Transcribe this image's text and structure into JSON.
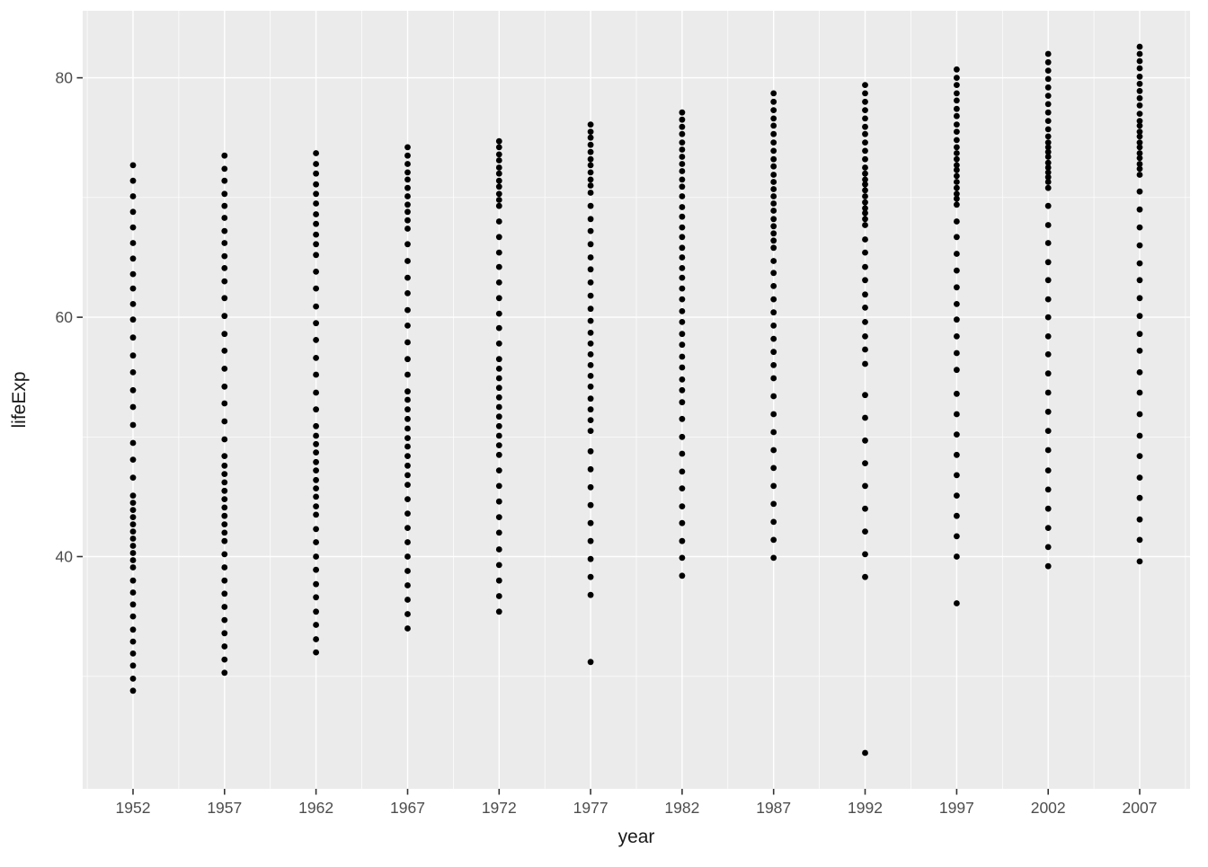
{
  "figure": {
    "background_color": "#FFFFFF",
    "panel_color": "#EBEBEB",
    "grid_color": "#FFFFFF",
    "point_color": "#000000",
    "tick_text_color": "#4D4D4D",
    "axis_title_color": "#1A1A1A",
    "tick_mark_color": "#333333"
  },
  "chart_data": {
    "type": "scatter",
    "title": "",
    "xlabel": "year",
    "ylabel": "lifeExp",
    "grid": "on",
    "legend": "none",
    "x_ticks": [
      1952,
      1957,
      1962,
      1967,
      1972,
      1977,
      1982,
      1987,
      1992,
      1997,
      2002,
      2007
    ],
    "x_tick_labels": [
      "1952",
      "1957",
      "1962",
      "1967",
      "1972",
      "1977",
      "1982",
      "1987",
      "1992",
      "1997",
      "2002",
      "2007"
    ],
    "y_ticks": [
      40,
      60,
      80
    ],
    "y_tick_labels": [
      "40",
      "60",
      "80"
    ],
    "xlim": [
      1949.25,
      2009.75
    ],
    "ylim": [
      20.6,
      85.6
    ],
    "x_minor_gridlines": [
      1949.5,
      1954.5,
      1959.5,
      1964.5,
      1969.5,
      1974.5,
      1979.5,
      1984.5,
      1989.5,
      1994.5,
      1999.5,
      2004.5,
      2009.5
    ],
    "y_minor_gridlines": [
      30,
      50,
      70
    ],
    "series": [
      {
        "name": "1952",
        "x": 1952,
        "values": [
          28.8,
          29.8,
          30.9,
          31.9,
          32.9,
          33.9,
          35.0,
          36.0,
          37.0,
          38.0,
          39.1,
          39.7,
          40.3,
          40.9,
          41.5,
          42.1,
          42.7,
          43.3,
          43.9,
          44.5,
          45.1,
          46.6,
          48.1,
          49.5,
          51.0,
          52.5,
          53.9,
          55.4,
          56.8,
          58.3,
          59.8,
          61.1,
          62.4,
          63.6,
          64.9,
          66.2,
          67.5,
          68.8,
          70.1,
          71.4,
          72.7
        ]
      },
      {
        "name": "1957",
        "x": 1957,
        "values": [
          30.3,
          31.4,
          32.5,
          33.6,
          34.7,
          35.8,
          36.9,
          38.0,
          39.1,
          40.2,
          41.3,
          42.0,
          42.7,
          43.4,
          44.1,
          44.8,
          45.5,
          46.2,
          46.9,
          47.6,
          48.4,
          49.8,
          51.3,
          52.8,
          54.2,
          55.7,
          57.2,
          58.6,
          60.1,
          61.6,
          63.0,
          64.1,
          65.1,
          66.2,
          67.2,
          68.3,
          69.3,
          70.3,
          71.4,
          72.4,
          73.5
        ]
      },
      {
        "name": "1962",
        "x": 1962,
        "values": [
          32.0,
          33.1,
          34.3,
          35.4,
          36.6,
          37.7,
          38.9,
          40.0,
          41.2,
          42.3,
          43.5,
          44.2,
          45.0,
          45.7,
          46.4,
          47.2,
          47.9,
          48.7,
          49.4,
          50.1,
          50.9,
          52.3,
          53.7,
          55.2,
          56.6,
          58.1,
          59.5,
          60.9,
          62.4,
          63.8,
          65.2,
          66.1,
          66.9,
          67.8,
          68.6,
          69.5,
          70.3,
          71.1,
          72.0,
          72.8,
          73.7
        ]
      },
      {
        "name": "1967",
        "x": 1967,
        "values": [
          34.0,
          35.2,
          36.4,
          37.6,
          38.8,
          40.0,
          41.2,
          42.4,
          43.6,
          44.8,
          46.0,
          46.8,
          47.6,
          48.4,
          49.2,
          49.9,
          50.7,
          51.5,
          52.3,
          53.1,
          53.8,
          55.2,
          56.5,
          57.9,
          59.3,
          60.6,
          62.0,
          63.3,
          64.7,
          66.1,
          67.4,
          68.1,
          68.8,
          69.4,
          70.1,
          70.8,
          71.5,
          72.1,
          72.8,
          73.5,
          74.2
        ]
      },
      {
        "name": "1972",
        "x": 1972,
        "values": [
          35.4,
          36.7,
          38.0,
          39.3,
          40.6,
          42.0,
          43.3,
          44.6,
          45.9,
          47.2,
          48.5,
          49.3,
          50.1,
          50.9,
          51.7,
          52.5,
          53.3,
          54.1,
          54.9,
          55.7,
          56.5,
          57.8,
          59.1,
          60.3,
          61.6,
          62.9,
          64.2,
          65.4,
          66.7,
          68.0,
          69.3,
          69.8,
          70.3,
          70.9,
          71.4,
          72.0,
          72.5,
          73.1,
          73.6,
          74.2,
          74.7
        ]
      },
      {
        "name": "1977",
        "x": 1977,
        "values": [
          31.2,
          36.8,
          38.3,
          39.8,
          41.3,
          42.8,
          44.3,
          45.8,
          47.3,
          48.8,
          50.5,
          51.4,
          52.3,
          53.2,
          54.2,
          55.1,
          56.0,
          56.9,
          57.8,
          58.7,
          59.7,
          60.7,
          61.8,
          62.9,
          64.0,
          65.0,
          66.1,
          67.2,
          68.2,
          69.3,
          70.4,
          71.0,
          71.5,
          72.1,
          72.7,
          73.2,
          73.8,
          74.4,
          75.0,
          75.5,
          76.1
        ]
      },
      {
        "name": "1982",
        "x": 1982,
        "values": [
          38.4,
          39.9,
          41.3,
          42.8,
          44.2,
          45.7,
          47.1,
          48.6,
          50.0,
          51.5,
          52.9,
          53.9,
          54.8,
          55.8,
          56.7,
          57.7,
          58.6,
          59.6,
          60.5,
          61.5,
          62.4,
          63.3,
          64.1,
          65.0,
          65.8,
          66.7,
          67.5,
          68.4,
          69.2,
          70.1,
          70.9,
          71.5,
          72.2,
          72.8,
          73.4,
          74.0,
          74.6,
          75.3,
          75.9,
          76.5,
          77.1
        ]
      },
      {
        "name": "1987",
        "x": 1987,
        "values": [
          39.9,
          41.4,
          42.9,
          44.4,
          45.9,
          47.4,
          48.9,
          50.4,
          51.9,
          53.4,
          54.9,
          56.0,
          57.1,
          58.2,
          59.3,
          60.4,
          61.5,
          62.6,
          63.7,
          64.7,
          65.8,
          66.4,
          67.0,
          67.6,
          68.2,
          68.9,
          69.5,
          70.1,
          70.7,
          71.3,
          71.9,
          72.6,
          73.2,
          73.9,
          74.6,
          75.3,
          76.0,
          76.6,
          77.3,
          78.0,
          78.7
        ]
      },
      {
        "name": "1992",
        "x": 1992,
        "values": [
          23.6,
          38.3,
          40.2,
          42.1,
          44.0,
          45.9,
          47.8,
          49.7,
          51.6,
          53.5,
          56.1,
          57.3,
          58.4,
          59.6,
          60.8,
          61.9,
          63.1,
          64.2,
          65.4,
          66.5,
          67.7,
          68.2,
          68.7,
          69.1,
          69.6,
          70.1,
          70.6,
          71.1,
          71.5,
          72.0,
          72.5,
          73.2,
          73.9,
          74.6,
          75.3,
          75.9,
          76.6,
          77.3,
          78.0,
          78.7,
          79.4
        ]
      },
      {
        "name": "1997",
        "x": 1997,
        "values": [
          36.1,
          40.0,
          41.7,
          43.4,
          45.1,
          46.8,
          48.5,
          50.2,
          51.9,
          53.6,
          55.6,
          57.0,
          58.4,
          59.8,
          61.1,
          62.5,
          63.9,
          65.3,
          66.7,
          68.0,
          69.4,
          69.9,
          70.3,
          70.8,
          71.3,
          71.8,
          72.3,
          72.7,
          73.2,
          73.7,
          74.2,
          74.8,
          75.5,
          76.1,
          76.8,
          77.4,
          78.1,
          78.7,
          79.4,
          80.0,
          80.7
        ]
      },
      {
        "name": "2002",
        "x": 2002,
        "values": [
          39.2,
          40.8,
          42.4,
          44.0,
          45.6,
          47.2,
          48.9,
          50.5,
          52.1,
          53.7,
          55.3,
          56.9,
          58.4,
          60.0,
          61.5,
          63.1,
          64.6,
          66.2,
          67.7,
          69.3,
          70.8,
          71.3,
          71.7,
          72.1,
          72.5,
          72.9,
          73.4,
          73.8,
          74.2,
          74.6,
          75.1,
          75.7,
          76.4,
          77.1,
          77.8,
          78.5,
          79.2,
          79.9,
          80.6,
          81.3,
          82.0
        ]
      },
      {
        "name": "2007",
        "x": 2007,
        "values": [
          39.6,
          41.4,
          43.1,
          44.9,
          46.6,
          48.4,
          50.1,
          51.9,
          53.7,
          55.4,
          57.2,
          58.6,
          60.1,
          61.6,
          63.1,
          64.5,
          66.0,
          67.5,
          69.0,
          70.5,
          71.9,
          72.4,
          72.8,
          73.3,
          73.7,
          74.2,
          74.6,
          75.1,
          75.5,
          76.0,
          76.4,
          77.0,
          77.7,
          78.3,
          78.9,
          79.5,
          80.1,
          80.8,
          81.4,
          82.0,
          82.6
        ]
      }
    ]
  }
}
